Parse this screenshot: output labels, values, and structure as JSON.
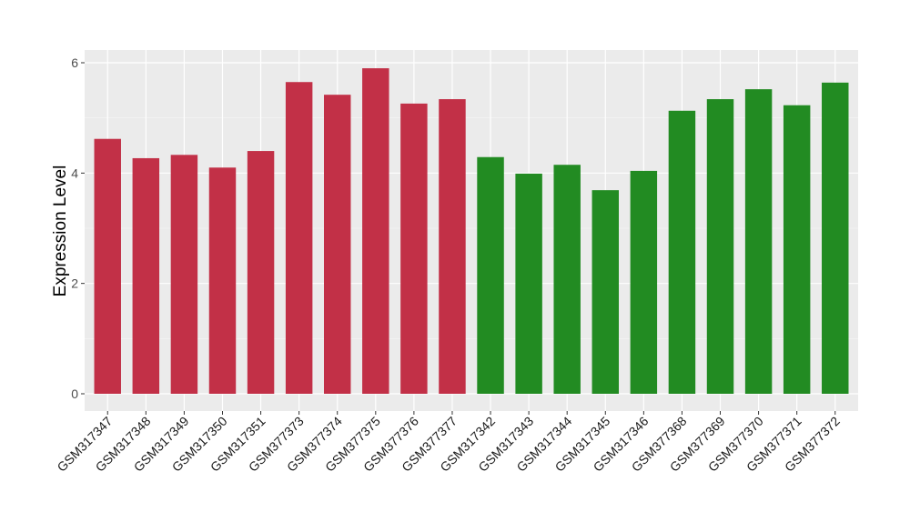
{
  "chart_data": {
    "type": "bar",
    "title": "",
    "xlabel": "",
    "ylabel": "Expression Level",
    "ylim": [
      -0.3,
      6.3
    ],
    "yticks": [
      0,
      2,
      4,
      6
    ],
    "grid": true,
    "legend": "none",
    "categories": [
      "GSM317347",
      "GSM317348",
      "GSM317349",
      "GSM317350",
      "GSM317351",
      "GSM377373",
      "GSM377374",
      "GSM377375",
      "GSM377376",
      "GSM377377",
      "GSM317342",
      "GSM317343",
      "GSM317344",
      "GSM317345",
      "GSM317346",
      "GSM377368",
      "GSM377369",
      "GSM377370",
      "GSM377371",
      "GSM377372"
    ],
    "values": [
      4.62,
      4.27,
      4.33,
      4.1,
      4.4,
      5.65,
      5.42,
      5.9,
      5.26,
      5.34,
      4.29,
      3.99,
      4.15,
      3.69,
      4.04,
      5.13,
      5.34,
      5.52,
      5.23,
      5.64
    ],
    "groups": [
      0,
      0,
      0,
      0,
      0,
      0,
      0,
      0,
      0,
      0,
      1,
      1,
      1,
      1,
      1,
      1,
      1,
      1,
      1,
      1
    ],
    "group_colors": [
      "#C23047",
      "#228B22"
    ]
  }
}
